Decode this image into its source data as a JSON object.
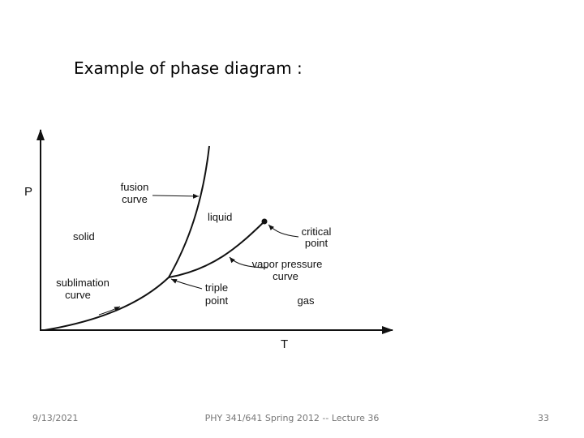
{
  "header": {
    "title": "Example of phase diagram :"
  },
  "diagram": {
    "axis_p": "P",
    "axis_t": "T",
    "fusion_curve": [
      "fusion",
      "curve"
    ],
    "liquid": "liquid",
    "solid": "solid",
    "critical_point": [
      "critical",
      "point"
    ],
    "vapor_pressure_curve": [
      "vapor pressure",
      "curve"
    ],
    "sublimation_curve": [
      "sublimation",
      "curve"
    ],
    "triple_point": [
      "triple",
      "point"
    ],
    "gas": "gas"
  },
  "footer": {
    "date": "9/13/2021",
    "course": "PHY 341/641 Spring 2012 -- Lecture 36",
    "page": "33"
  }
}
